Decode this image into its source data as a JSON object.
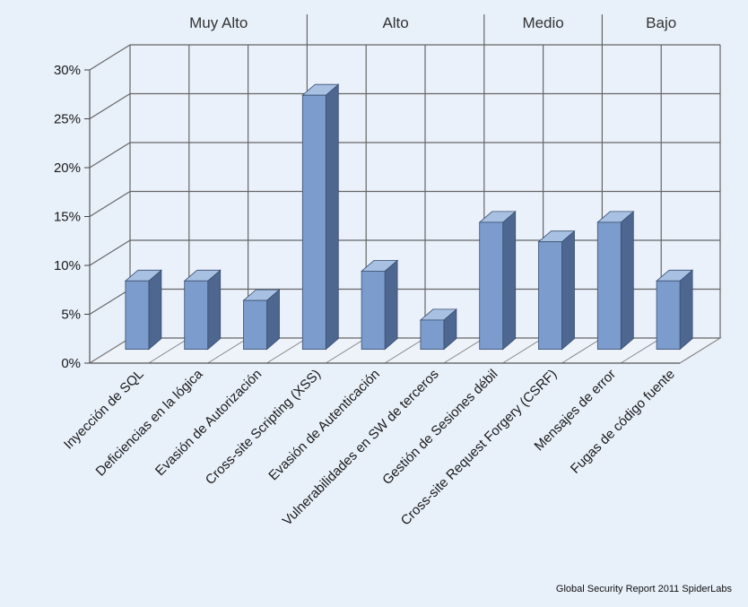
{
  "chart_data": {
    "type": "bar",
    "categories": [
      "Inyección de SQL",
      "Deficiencias en la lógica",
      "Evasión de Autorización",
      "Cross-site Scripting (XSS)",
      "Evasión de Autenticación",
      "Vulnerabilidades en SW de terceros",
      "Gestión de Sesiones débil",
      "Cross-site Request Forgery (CSRF)",
      "Mensajes de error",
      "Fugas de código fuente"
    ],
    "values": [
      7,
      7,
      5,
      26,
      8,
      3,
      13,
      11,
      13,
      7
    ],
    "ylim": [
      0,
      30
    ],
    "yticks": [
      "0%",
      "5%",
      "10%",
      "15%",
      "20%",
      "25%",
      "30%"
    ],
    "ytick_values": [
      0,
      5,
      10,
      15,
      20,
      25,
      30
    ],
    "groups": [
      {
        "label": "Muy Alto",
        "start": 0,
        "end": 2
      },
      {
        "label": "Alto",
        "start": 3,
        "end": 5
      },
      {
        "label": "Medio",
        "start": 6,
        "end": 7
      },
      {
        "label": "Bajo",
        "start": 8,
        "end": 9
      }
    ],
    "grid": true,
    "bar_color": "#7b9ccc",
    "bar_side_color": "#4e6790",
    "bar_top_color": "#a8c0e2"
  },
  "source": "Global Security Report 2011 SpiderLabs"
}
